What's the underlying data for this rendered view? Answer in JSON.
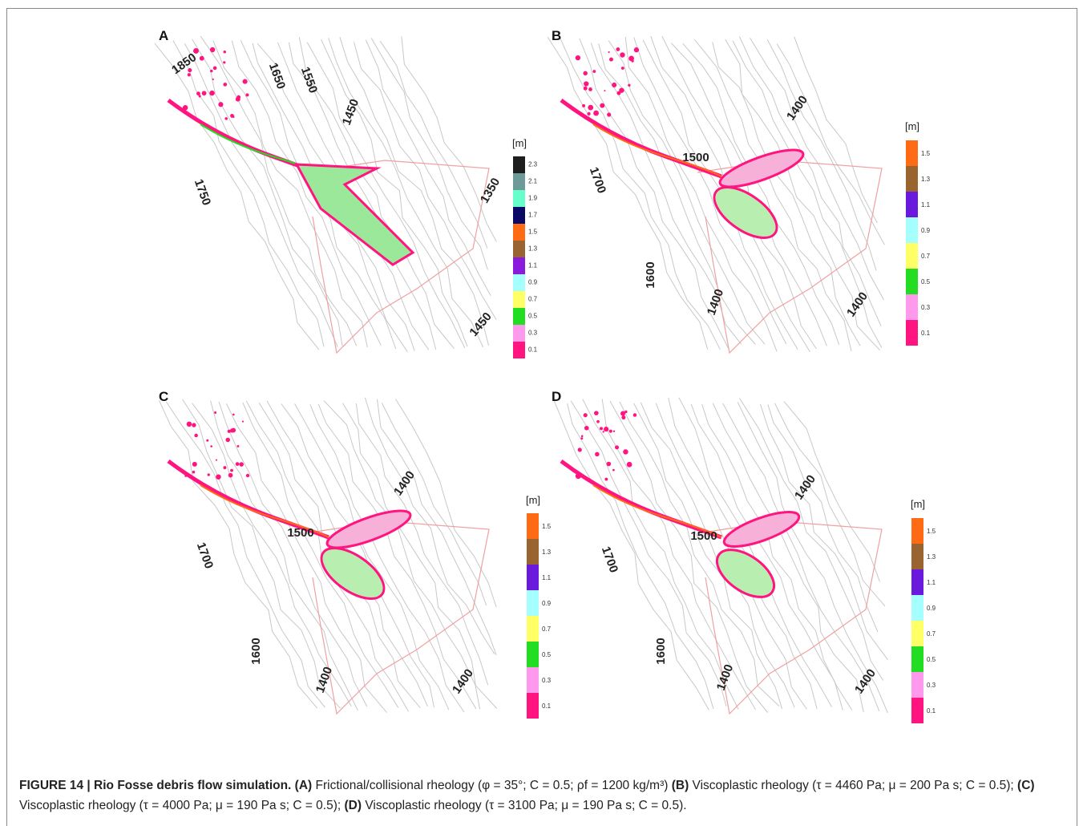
{
  "panels": [
    {
      "label": "A",
      "contour_labels": [
        1850,
        1650,
        1550,
        1450,
        1750,
        1350,
        1450
      ],
      "legend": {
        "unit": "[m]",
        "ticks": [
          2.3,
          2.1,
          1.9,
          1.7,
          1.5,
          1.3,
          1.1,
          0.9,
          0.7,
          0.5,
          0.3,
          0.1
        ],
        "colors": [
          "#1e1e1e",
          "#6f9a9a",
          "#66ffcc",
          "#0a0a66",
          "#ff6a14",
          "#9a6430",
          "#8a1adc",
          "#a6ffff",
          "#ffff66",
          "#22dd22",
          "#ff99ee",
          "#ff1480"
        ]
      }
    },
    {
      "label": "B",
      "contour_labels": [
        1400,
        1500,
        1700,
        1600,
        1400,
        1400
      ],
      "legend": {
        "unit": "[m]",
        "ticks": [
          1.5,
          1.3,
          1.1,
          0.9,
          0.7,
          0.5,
          0.3,
          0.1
        ],
        "colors": [
          "#ff6a14",
          "#9a6430",
          "#6a1adc",
          "#a6ffff",
          "#ffff66",
          "#22dd22",
          "#ff99ee",
          "#ff1480"
        ]
      }
    },
    {
      "label": "C",
      "contour_labels": [
        1400,
        1500,
        1700,
        1600,
        1400,
        1400
      ],
      "legend": {
        "unit": "[m]",
        "ticks": [
          1.5,
          1.3,
          1.1,
          0.9,
          0.7,
          0.5,
          0.3,
          0.1
        ],
        "colors": [
          "#ff6a14",
          "#9a6430",
          "#6a1adc",
          "#a6ffff",
          "#ffff66",
          "#22dd22",
          "#ff99ee",
          "#ff1480"
        ]
      }
    },
    {
      "label": "D",
      "contour_labels": [
        1400,
        1500,
        1700,
        1600,
        1400,
        1400
      ],
      "legend": {
        "unit": "[m]",
        "ticks": [
          1.5,
          1.3,
          1.1,
          0.9,
          0.7,
          0.5,
          0.3,
          0.1
        ],
        "colors": [
          "#ff6a14",
          "#9a6430",
          "#6a1adc",
          "#a6ffff",
          "#ffff66",
          "#22dd22",
          "#ff99ee",
          "#ff1480"
        ]
      }
    }
  ],
  "caption": {
    "segments": [
      {
        "text": "FIGURE 14 | Rio Fosse debris flow simulation.",
        "bold": true
      },
      {
        "text": " (A)",
        "bold": true
      },
      {
        "text": " Frictional/collisional rheology (φ = 35°; C = 0.5; ρf = 1200 kg/m³)",
        "bold": false
      },
      {
        "text": " (B)",
        "bold": true
      },
      {
        "text": " Viscoplastic rheology (τ = 4460 Pa; μ = 200 Pa s; C = 0.5);",
        "bold": false
      },
      {
        "text": " (C)",
        "bold": true
      },
      {
        "text": " Viscoplastic rheology (τ = 4000 Pa; μ = 190 Pa s; C = 0.5);",
        "bold": false
      },
      {
        "text": " (D)",
        "bold": true
      },
      {
        "text": " Viscoplastic rheology (τ = 3100 Pa; μ = 190 Pa s; C = 0.5).",
        "bold": false
      }
    ]
  }
}
